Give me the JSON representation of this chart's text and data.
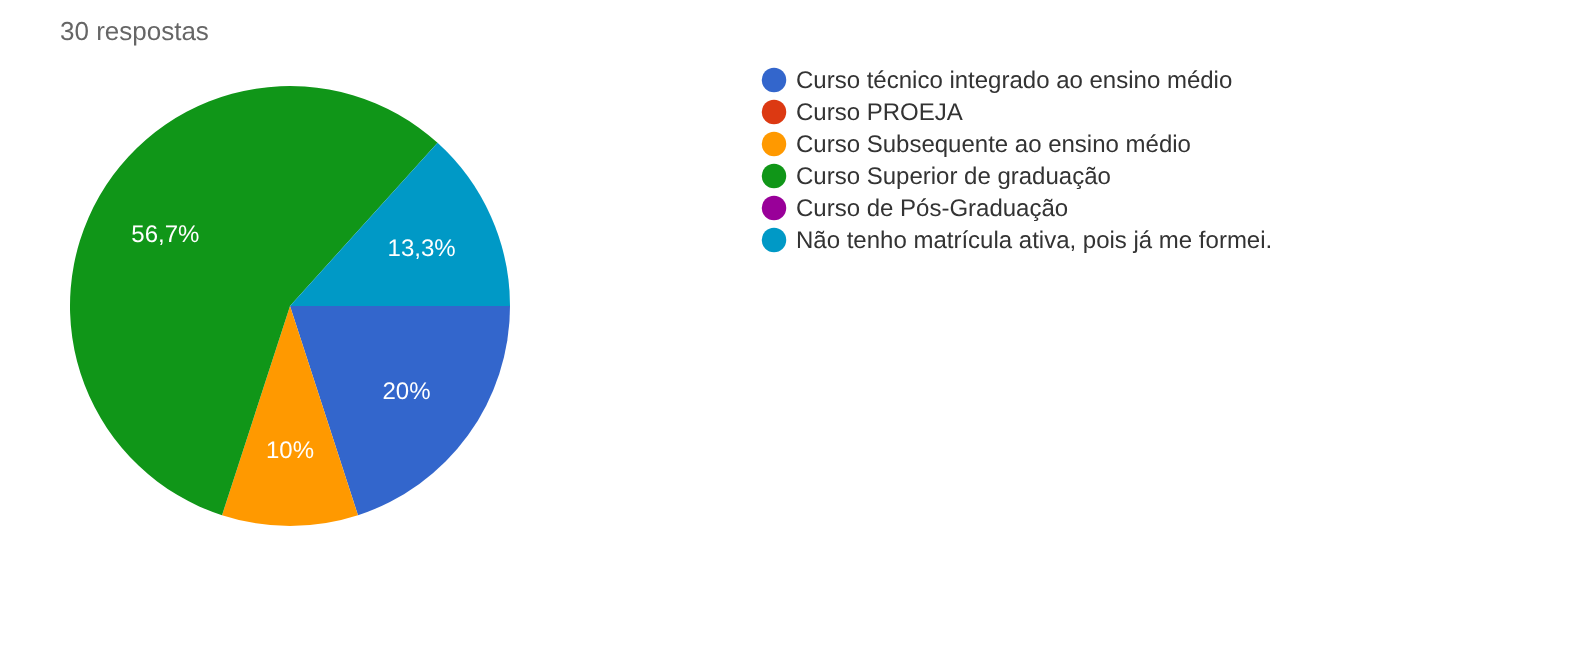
{
  "chart_data": {
    "type": "pie",
    "title": "30 respostas",
    "categories": [
      "Curso técnico integrado ao ensino médio",
      "Curso PROEJA",
      "Curso Subsequente ao ensino médio",
      "Curso Superior de graduação",
      "Curso de Pós-Graduação",
      "Não tenho matrícula ativa, pois já me formei."
    ],
    "values": [
      20,
      0,
      10,
      56.7,
      0,
      13.3
    ],
    "colors": [
      "#3366cc",
      "#dc3912",
      "#ff9900",
      "#109618",
      "#990099",
      "#0099c6"
    ],
    "value_labels": [
      "20%",
      null,
      "10%",
      "56,7%",
      null,
      "13,3%"
    ],
    "legend": "right"
  }
}
